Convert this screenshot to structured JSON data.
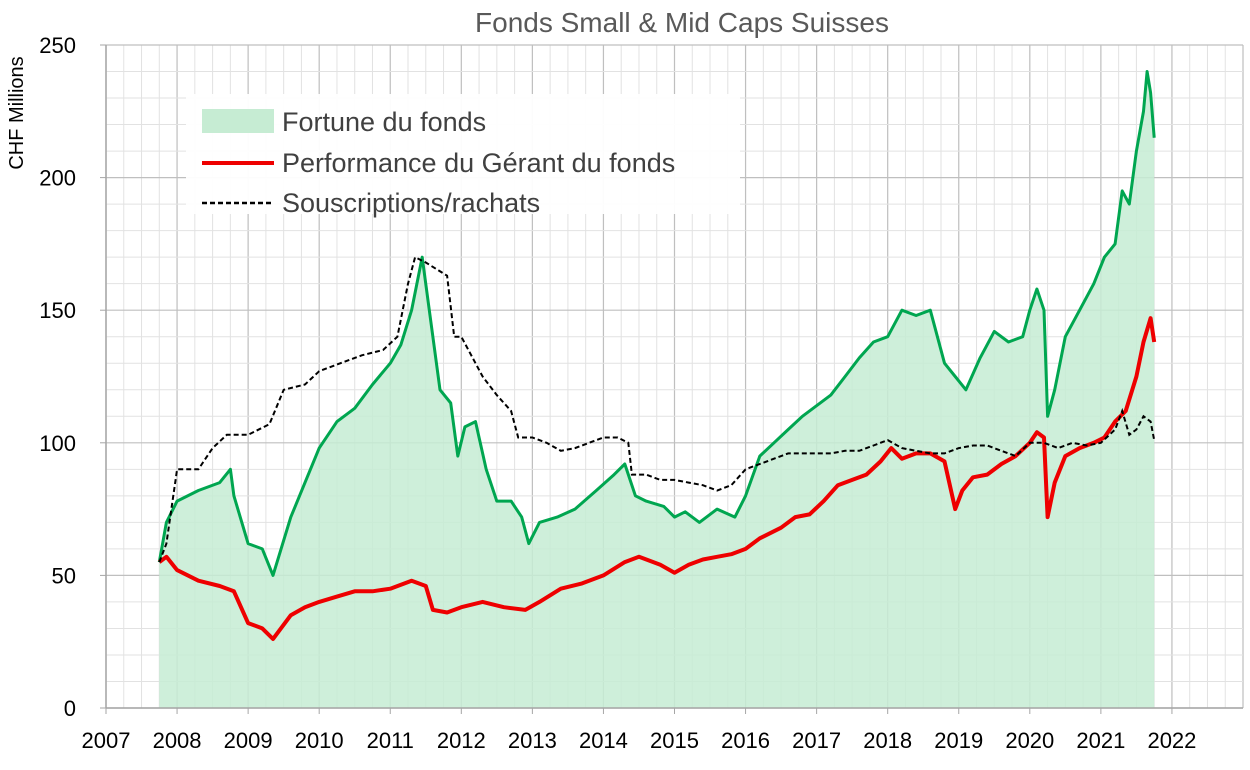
{
  "chart_data": {
    "type": "line",
    "title": "Fonds Small & Mid Caps Suisses",
    "ylabel": "CHF Millions",
    "xlabel": "",
    "xlim": [
      2007,
      2023
    ],
    "ylim": [
      0,
      250
    ],
    "x_ticks": [
      "2007",
      "2008",
      "2009",
      "2010",
      "2011",
      "2012",
      "2013",
      "2014",
      "2015",
      "2016",
      "2017",
      "2018",
      "2019",
      "2020",
      "2021",
      "2022"
    ],
    "y_ticks": [
      "0",
      "50",
      "100",
      "150",
      "200",
      "250"
    ],
    "grid": true,
    "legend_position": "top-left",
    "series": [
      {
        "name": "Fortune du fonds",
        "style": "area",
        "color": "#00a650",
        "fill": "#c6ecd3",
        "x": [
          2007.75,
          2007.85,
          2008.0,
          2008.3,
          2008.6,
          2008.75,
          2008.8,
          2009.0,
          2009.2,
          2009.35,
          2009.6,
          2009.8,
          2010.0,
          2010.25,
          2010.5,
          2010.75,
          2011.0,
          2011.15,
          2011.3,
          2011.45,
          2011.55,
          2011.7,
          2011.85,
          2011.95,
          2012.05,
          2012.2,
          2012.35,
          2012.5,
          2012.7,
          2012.85,
          2012.95,
          2013.1,
          2013.35,
          2013.6,
          2013.9,
          2014.15,
          2014.3,
          2014.45,
          2014.6,
          2014.85,
          2015.0,
          2015.15,
          2015.35,
          2015.6,
          2015.85,
          2016.0,
          2016.2,
          2016.4,
          2016.6,
          2016.8,
          2017.0,
          2017.2,
          2017.4,
          2017.6,
          2017.8,
          2018.0,
          2018.2,
          2018.4,
          2018.6,
          2018.8,
          2018.95,
          2019.1,
          2019.3,
          2019.5,
          2019.7,
          2019.9,
          2020.0,
          2020.1,
          2020.2,
          2020.25,
          2020.35,
          2020.5,
          2020.7,
          2020.9,
          2021.05,
          2021.2,
          2021.3,
          2021.4,
          2021.5,
          2021.6,
          2021.65,
          2021.7,
          2021.75
        ],
        "y": [
          55,
          70,
          78,
          82,
          85,
          90,
          80,
          62,
          60,
          50,
          72,
          85,
          98,
          108,
          113,
          122,
          130,
          137,
          150,
          170,
          150,
          120,
          115,
          95,
          106,
          108,
          90,
          78,
          78,
          72,
          62,
          70,
          72,
          75,
          82,
          88,
          92,
          80,
          78,
          76,
          72,
          74,
          70,
          75,
          72,
          80,
          95,
          100,
          105,
          110,
          114,
          118,
          125,
          132,
          138,
          140,
          150,
          148,
          150,
          130,
          125,
          120,
          132,
          142,
          138,
          140,
          150,
          158,
          150,
          110,
          120,
          140,
          150,
          160,
          170,
          175,
          195,
          190,
          210,
          225,
          240,
          232,
          215
        ]
      },
      {
        "name": "Performance du Gérant du fonds",
        "style": "solid",
        "color": "#ee0000",
        "x": [
          2007.75,
          2007.85,
          2008.0,
          2008.3,
          2008.6,
          2008.8,
          2009.0,
          2009.2,
          2009.35,
          2009.6,
          2009.8,
          2010.0,
          2010.25,
          2010.5,
          2010.75,
          2011.0,
          2011.3,
          2011.5,
          2011.6,
          2011.8,
          2012.0,
          2012.3,
          2012.6,
          2012.9,
          2013.1,
          2013.4,
          2013.7,
          2014.0,
          2014.3,
          2014.5,
          2014.8,
          2015.0,
          2015.2,
          2015.4,
          2015.6,
          2015.8,
          2016.0,
          2016.2,
          2016.5,
          2016.7,
          2016.9,
          2017.1,
          2017.3,
          2017.5,
          2017.7,
          2017.9,
          2018.05,
          2018.2,
          2018.4,
          2018.6,
          2018.8,
          2018.95,
          2019.05,
          2019.2,
          2019.4,
          2019.6,
          2019.8,
          2020.0,
          2020.1,
          2020.2,
          2020.25,
          2020.35,
          2020.5,
          2020.7,
          2020.9,
          2021.05,
          2021.2,
          2021.35,
          2021.5,
          2021.6,
          2021.7,
          2021.75
        ],
        "y": [
          55,
          57,
          52,
          48,
          46,
          44,
          32,
          30,
          26,
          35,
          38,
          40,
          42,
          44,
          44,
          45,
          48,
          46,
          37,
          36,
          38,
          40,
          38,
          37,
          40,
          45,
          47,
          50,
          55,
          57,
          54,
          51,
          54,
          56,
          57,
          58,
          60,
          64,
          68,
          72,
          73,
          78,
          84,
          86,
          88,
          93,
          98,
          94,
          96,
          96,
          93,
          75,
          82,
          87,
          88,
          92,
          95,
          100,
          104,
          102,
          72,
          85,
          95,
          98,
          100,
          102,
          108,
          112,
          125,
          138,
          147,
          138
        ]
      },
      {
        "name": "Souscriptions/rachats",
        "style": "dashed",
        "color": "#000000",
        "x": [
          2007.75,
          2007.85,
          2008.0,
          2008.3,
          2008.5,
          2008.7,
          2009.0,
          2009.3,
          2009.5,
          2009.8,
          2010.0,
          2010.3,
          2010.6,
          2010.9,
          2011.1,
          2011.25,
          2011.35,
          2011.5,
          2011.8,
          2011.9,
          2012.0,
          2012.2,
          2012.3,
          2012.5,
          2012.7,
          2012.8,
          2013.0,
          2013.2,
          2013.4,
          2013.6,
          2013.8,
          2014.0,
          2014.2,
          2014.35,
          2014.4,
          2014.6,
          2014.8,
          2015.0,
          2015.2,
          2015.4,
          2015.6,
          2015.8,
          2016.0,
          2016.2,
          2016.4,
          2016.6,
          2016.8,
          2017.0,
          2017.2,
          2017.4,
          2017.6,
          2017.8,
          2018.0,
          2018.2,
          2018.4,
          2018.6,
          2018.8,
          2019.0,
          2019.2,
          2019.4,
          2019.6,
          2019.8,
          2020.0,
          2020.2,
          2020.4,
          2020.6,
          2020.8,
          2021.0,
          2021.2,
          2021.3,
          2021.4,
          2021.5,
          2021.6,
          2021.7,
          2021.75
        ],
        "y": [
          55,
          62,
          90,
          90,
          98,
          103,
          103,
          107,
          120,
          122,
          127,
          130,
          133,
          135,
          140,
          160,
          170,
          168,
          163,
          140,
          140,
          130,
          125,
          118,
          112,
          102,
          102,
          100,
          97,
          98,
          100,
          102,
          102,
          100,
          88,
          88,
          86,
          86,
          85,
          84,
          82,
          84,
          90,
          92,
          94,
          96,
          96,
          96,
          96,
          97,
          97,
          99,
          101,
          98,
          97,
          96,
          96,
          98,
          99,
          99,
          97,
          95,
          100,
          100,
          98,
          100,
          99,
          100,
          105,
          112,
          103,
          105,
          110,
          108,
          101
        ]
      }
    ]
  }
}
